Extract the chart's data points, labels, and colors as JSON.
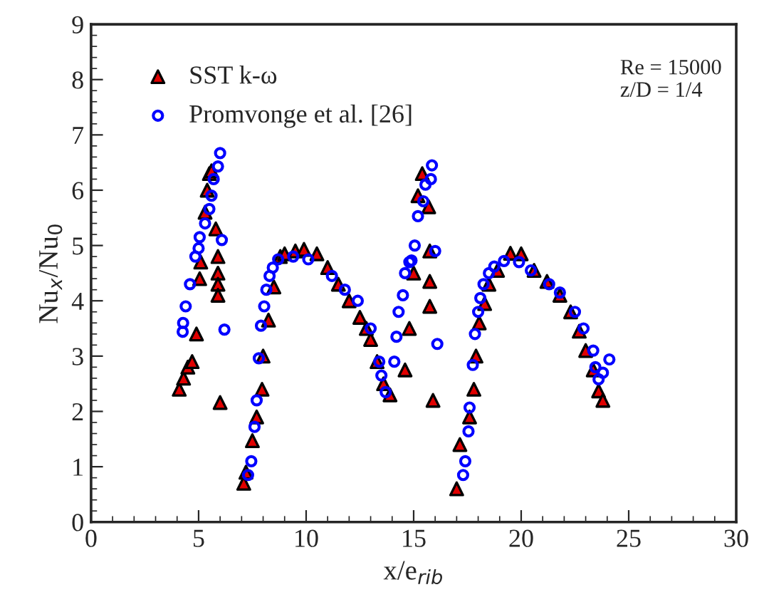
{
  "chart_data": {
    "type": "scatter",
    "xlabel": "x/e$_{rib}$",
    "ylabel": "Nu$_{x}$/Nu$_{0}$",
    "xlim": [
      0,
      30
    ],
    "xticks": [
      0,
      5,
      10,
      15,
      20,
      25,
      30
    ],
    "ylim": [
      0,
      9
    ],
    "yticks": [
      0,
      1,
      2,
      3,
      4,
      5,
      6,
      7,
      8,
      9
    ],
    "grid": false,
    "legend": "top left",
    "annotations": [
      "Re = 15000",
      "z/D = 1/4"
    ],
    "series": [
      {
        "name": "SST k-ω",
        "color": "#e00000",
        "marker": "triangle",
        "x": [
          4.1,
          4.3,
          4.5,
          4.7,
          4.9,
          5.05,
          5.1,
          5.3,
          5.4,
          5.5,
          5.6,
          5.8,
          5.9,
          5.9,
          5.9,
          5.9,
          6.0,
          7.1,
          7.2,
          7.5,
          7.7,
          7.95,
          8.0,
          8.25,
          8.5,
          8.8,
          9.0,
          9.5,
          9.9,
          10.5,
          11.0,
          11.5,
          12.0,
          12.5,
          12.8,
          13.0,
          13.3,
          13.6,
          13.9,
          14.6,
          14.8,
          15.0,
          15.2,
          15.4,
          15.7,
          15.75,
          15.75,
          15.75,
          15.9,
          17.0,
          17.15,
          17.6,
          17.8,
          17.9,
          18.05,
          18.3,
          18.5,
          18.9,
          19.5,
          20.0,
          20.6,
          21.2,
          21.8,
          22.3,
          22.7,
          23.0,
          23.35,
          23.6,
          23.8
        ],
        "values": [
          2.4,
          2.6,
          2.8,
          2.9,
          3.4,
          4.4,
          4.7,
          5.6,
          6.0,
          6.3,
          6.35,
          5.3,
          4.8,
          4.5,
          4.3,
          4.1,
          2.16,
          0.7,
          0.9,
          1.47,
          1.9,
          2.4,
          3.0,
          3.65,
          4.25,
          4.8,
          4.85,
          4.9,
          4.93,
          4.85,
          4.6,
          4.3,
          4.0,
          3.7,
          3.5,
          3.3,
          2.9,
          2.5,
          2.3,
          2.75,
          3.5,
          4.5,
          5.9,
          6.3,
          5.7,
          4.9,
          4.35,
          3.9,
          2.2,
          0.6,
          1.4,
          1.9,
          2.4,
          3.0,
          3.6,
          3.95,
          4.3,
          4.55,
          4.86,
          4.85,
          4.55,
          4.35,
          4.1,
          3.8,
          3.45,
          3.1,
          2.75,
          2.37,
          2.2
        ]
      },
      {
        "name": "Promvonge et al. [26]",
        "color": "#0000ff",
        "marker": "circle",
        "x": [
          4.26,
          4.28,
          4.4,
          4.6,
          4.85,
          5.0,
          5.05,
          5.3,
          5.5,
          5.6,
          5.7,
          5.9,
          6.0,
          6.08,
          6.2,
          7.3,
          7.45,
          7.6,
          7.7,
          7.8,
          7.9,
          8.05,
          8.15,
          8.3,
          8.45,
          8.7,
          9.4,
          10.1,
          11.2,
          11.8,
          12.4,
          13.0,
          13.4,
          13.5,
          13.7,
          14.1,
          14.2,
          14.3,
          14.5,
          14.6,
          14.8,
          14.9,
          15.05,
          15.2,
          15.45,
          15.55,
          15.8,
          15.85,
          16.0,
          16.1,
          17.3,
          17.4,
          17.55,
          17.6,
          17.75,
          17.85,
          18.0,
          18.1,
          18.25,
          18.5,
          18.75,
          19.2,
          19.9,
          20.45,
          21.3,
          21.8,
          22.5,
          22.9,
          23.35,
          23.45,
          23.6,
          23.8,
          24.1
        ],
        "values": [
          3.44,
          3.6,
          3.9,
          4.3,
          4.8,
          4.95,
          5.15,
          5.4,
          5.66,
          5.9,
          6.2,
          6.43,
          6.67,
          5.1,
          3.48,
          0.85,
          1.1,
          1.72,
          2.2,
          2.96,
          3.55,
          3.9,
          4.2,
          4.45,
          4.6,
          4.75,
          4.8,
          4.75,
          4.45,
          4.2,
          4.0,
          3.5,
          2.9,
          2.65,
          2.35,
          2.9,
          3.35,
          3.8,
          4.1,
          4.5,
          4.7,
          4.73,
          5.0,
          5.53,
          5.8,
          6.1,
          6.2,
          6.45,
          4.9,
          3.22,
          0.85,
          1.1,
          1.64,
          2.07,
          2.84,
          3.4,
          3.8,
          4.05,
          4.3,
          4.5,
          4.62,
          4.72,
          4.7,
          4.55,
          4.3,
          4.15,
          3.8,
          3.5,
          3.1,
          2.8,
          2.58,
          2.7,
          2.94
        ]
      }
    ]
  }
}
